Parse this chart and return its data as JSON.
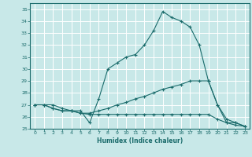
{
  "xlabel": "Humidex (Indice chaleur)",
  "ylabel": "",
  "xlim": [
    -0.5,
    23.5
  ],
  "ylim": [
    25,
    35.5
  ],
  "yticks": [
    25,
    26,
    27,
    28,
    29,
    30,
    31,
    32,
    33,
    34,
    35
  ],
  "xticks": [
    0,
    1,
    2,
    3,
    4,
    5,
    6,
    7,
    8,
    9,
    10,
    11,
    12,
    13,
    14,
    15,
    16,
    17,
    18,
    19,
    20,
    21,
    22,
    23
  ],
  "bg_color": "#c8e8e8",
  "grid_color": "#ffffff",
  "line_color": "#1a6b6b",
  "line1_x": [
    0,
    1,
    2,
    3,
    4,
    5,
    6,
    7,
    8,
    9,
    10,
    11,
    12,
    13,
    14,
    15,
    16,
    17,
    18,
    19,
    20,
    21,
    22,
    23
  ],
  "line1_y": [
    27.0,
    27.0,
    27.0,
    26.7,
    26.5,
    26.5,
    25.5,
    27.5,
    30.0,
    30.5,
    31.0,
    31.2,
    32.0,
    33.2,
    34.8,
    34.3,
    34.0,
    33.5,
    32.0,
    29.0,
    27.0,
    25.5,
    25.5,
    25.2
  ],
  "line2_x": [
    0,
    1,
    2,
    3,
    4,
    5,
    6,
    7,
    8,
    9,
    10,
    11,
    12,
    13,
    14,
    15,
    16,
    17,
    18,
    19,
    20,
    21,
    22,
    23
  ],
  "line2_y": [
    27.0,
    27.0,
    26.7,
    26.5,
    26.5,
    26.3,
    26.3,
    26.5,
    26.7,
    27.0,
    27.2,
    27.5,
    27.7,
    28.0,
    28.3,
    28.5,
    28.7,
    29.0,
    29.0,
    29.0,
    27.0,
    25.8,
    25.5,
    25.2
  ],
  "line3_x": [
    0,
    1,
    2,
    3,
    4,
    5,
    6,
    7,
    8,
    9,
    10,
    11,
    12,
    13,
    14,
    15,
    16,
    17,
    18,
    19,
    20,
    21,
    22,
    23
  ],
  "line3_y": [
    27.0,
    27.0,
    26.7,
    26.5,
    26.5,
    26.3,
    26.2,
    26.2,
    26.2,
    26.2,
    26.2,
    26.2,
    26.2,
    26.2,
    26.2,
    26.2,
    26.2,
    26.2,
    26.2,
    26.2,
    25.8,
    25.5,
    25.3,
    25.2
  ]
}
